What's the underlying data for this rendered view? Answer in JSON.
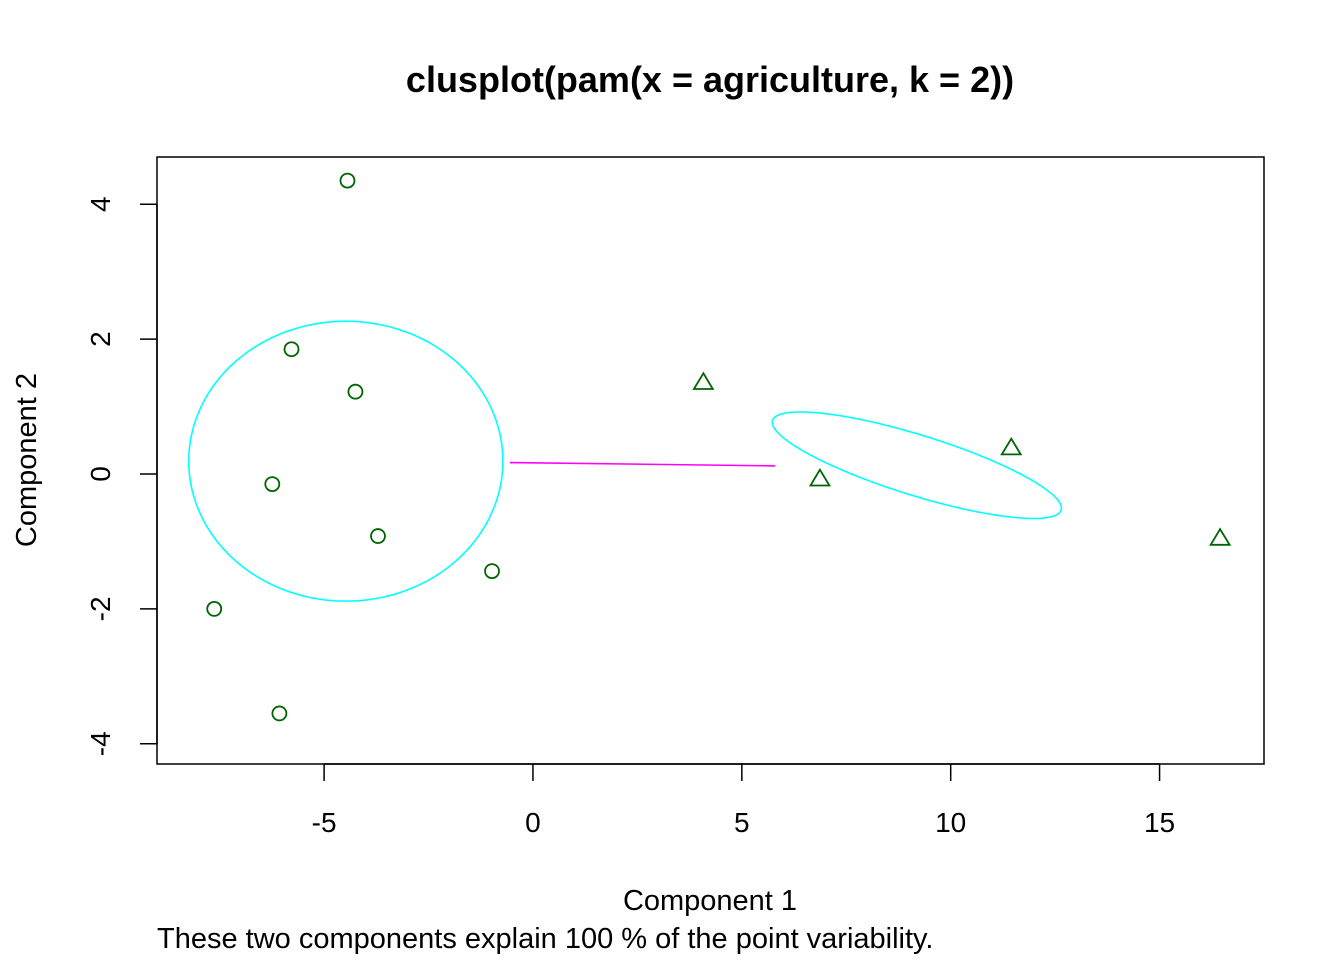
{
  "chart_data": {
    "type": "scatter",
    "title": "clusplot(pam(x = agriculture, k = 2))",
    "xlabel": "Component 1",
    "ylabel": "Component 2",
    "subtitle": "These two components explain 100 % of the point variability.",
    "xlim": [
      -9,
      17.5
    ],
    "ylim": [
      -4.3,
      4.7
    ],
    "x_ticks": [
      -5,
      0,
      5,
      10,
      15
    ],
    "y_ticks": [
      -4,
      -2,
      0,
      2,
      4
    ],
    "grid": false,
    "clusters": [
      {
        "marker": "circle",
        "points": [
          [
            -4.44,
            4.35
          ],
          [
            -5.78,
            1.85
          ],
          [
            -4.25,
            1.22
          ],
          [
            -6.24,
            -0.15
          ],
          [
            -3.71,
            -0.92
          ],
          [
            -0.98,
            -1.44
          ],
          [
            -7.63,
            -2.0
          ],
          [
            -6.07,
            -3.55
          ]
        ],
        "ellipse": {
          "center": [
            -4.48,
            0.19
          ],
          "rx": 7.52,
          "ry": 4.15,
          "angle_deg": 0
        }
      },
      {
        "marker": "triangle",
        "points": [
          [
            4.08,
            1.36
          ],
          [
            6.87,
            -0.07
          ],
          [
            11.45,
            0.39
          ],
          [
            16.45,
            -0.95
          ]
        ],
        "ellipse": {
          "center": [
            9.19,
            0.13
          ],
          "rx": 7.04,
          "ry": 0.92,
          "angle_deg": -10.6
        }
      }
    ],
    "connector": {
      "from": [
        -0.55,
        0.17
      ],
      "to": [
        5.8,
        0.12
      ]
    }
  },
  "colors": {
    "points": "#006400",
    "ellipse": "#00FFFF",
    "connector": "#FF00FF",
    "axis": "#000000"
  }
}
